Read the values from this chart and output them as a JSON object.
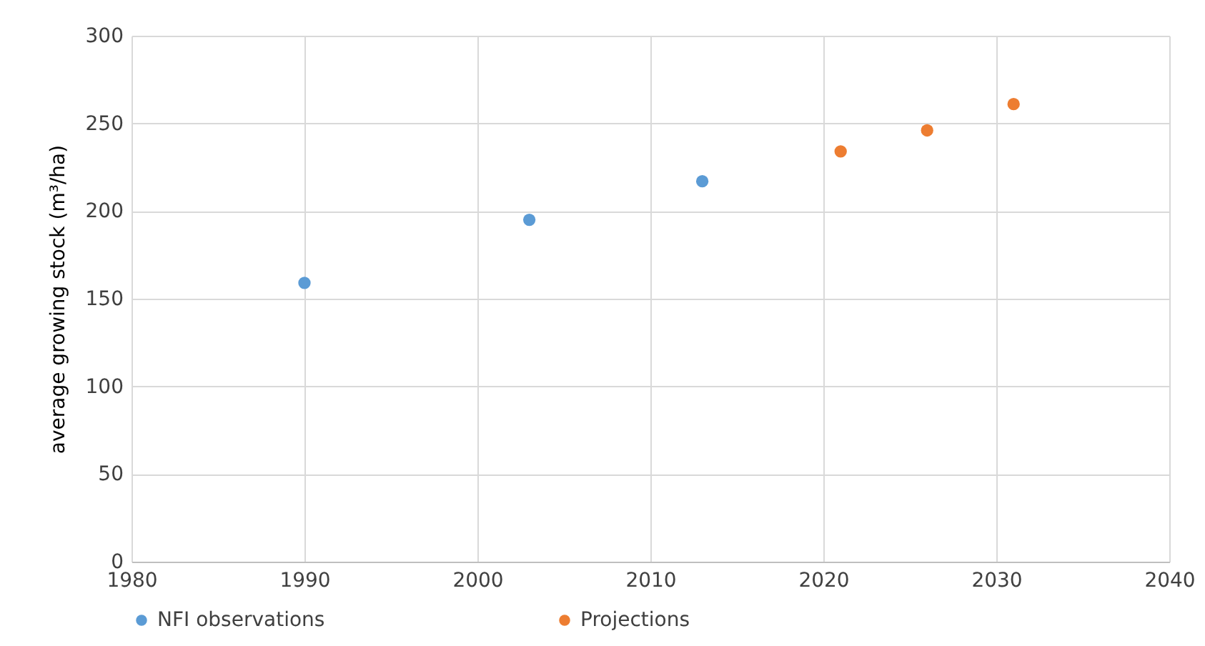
{
  "chart_data": {
    "type": "scatter",
    "ylabel": "average growing stock (m³/ha)",
    "xlim": [
      1980,
      2040
    ],
    "xticks": [
      1980,
      1990,
      2000,
      2010,
      2020,
      2030,
      2040
    ],
    "ylim": [
      0,
      300
    ],
    "yticks": [
      0,
      50,
      100,
      150,
      200,
      250,
      300
    ],
    "grid": true,
    "legend": "bottom",
    "marker": "circle",
    "series": [
      {
        "name": "NFI observations",
        "color": "#5b9bd5",
        "x": [
          1990,
          2003,
          2013
        ],
        "values": [
          159,
          195,
          217
        ]
      },
      {
        "name": "Projections",
        "color": "#ed7d31",
        "x": [
          2021,
          2026,
          2031
        ],
        "values": [
          234,
          246,
          261
        ]
      }
    ]
  }
}
